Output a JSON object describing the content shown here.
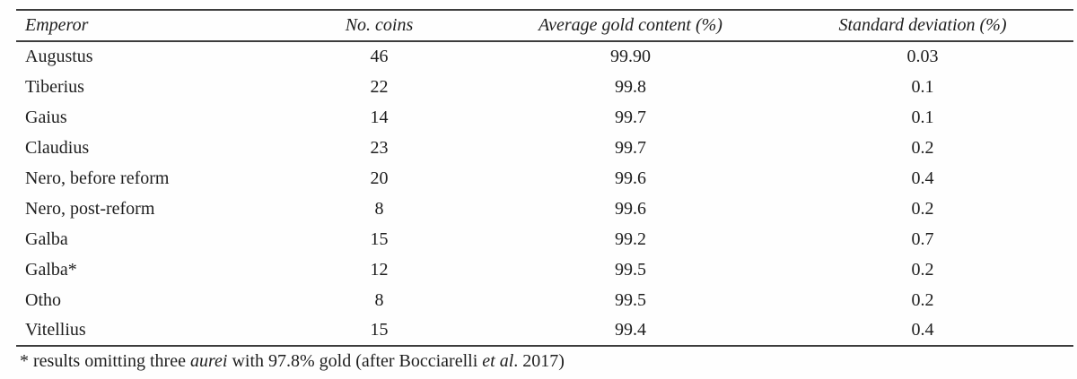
{
  "colors": {
    "background": "#fefefe",
    "text": "#1e1e1e",
    "rule": "#3d3d3d"
  },
  "table": {
    "headers": {
      "emperor": "Emperor",
      "no_coins": "No. coins",
      "avg_gold": "Average gold content (%)",
      "std_dev": "Standard deviation (%)"
    },
    "rows": [
      {
        "emperor": "Augustus",
        "no_coins": "46",
        "avg_gold": "99.90",
        "std_dev": "0.03"
      },
      {
        "emperor": "Tiberius",
        "no_coins": "22",
        "avg_gold": "99.8",
        "std_dev": "0.1"
      },
      {
        "emperor": "Gaius",
        "no_coins": "14",
        "avg_gold": "99.7",
        "std_dev": "0.1"
      },
      {
        "emperor": "Claudius",
        "no_coins": "23",
        "avg_gold": "99.7",
        "std_dev": "0.2"
      },
      {
        "emperor": "Nero, before reform",
        "no_coins": "20",
        "avg_gold": "99.6",
        "std_dev": "0.4"
      },
      {
        "emperor": "Nero, post-reform",
        "no_coins": "8",
        "avg_gold": "99.6",
        "std_dev": "0.2"
      },
      {
        "emperor": "Galba",
        "no_coins": "15",
        "avg_gold": "99.2",
        "std_dev": "0.7"
      },
      {
        "emperor": "Galba*",
        "no_coins": "12",
        "avg_gold": "99.5",
        "std_dev": "0.2"
      },
      {
        "emperor": "Otho",
        "no_coins": "8",
        "avg_gold": "99.5",
        "std_dev": "0.2"
      },
      {
        "emperor": "Vitellius",
        "no_coins": "15",
        "avg_gold": "99.4",
        "std_dev": "0.4"
      }
    ]
  },
  "footnote": {
    "part1": "* results omitting three ",
    "italic1": "aurei",
    "part2": " with 97.8% gold (after Bocciarelli ",
    "italic2": "et al",
    "part3": ". 2017)"
  }
}
